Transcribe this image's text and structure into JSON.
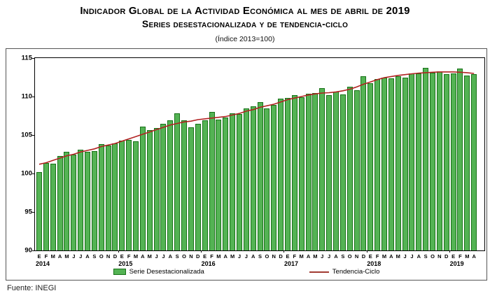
{
  "header": {
    "title_line1": "Indicador Global de la Actividad Económica al mes de abril de 2019",
    "title_line2": "Series desestacionalizada y de tendencia-ciclo",
    "index_note": "(Índice 2013=100)"
  },
  "legend": {
    "bars_label": "Serie Desestacionalizada",
    "line_label": "Tendencia-Ciclo"
  },
  "footer": {
    "source": "Fuente: INEGI"
  },
  "chart_data": {
    "type": "bar",
    "title": "Indicador Global de la Actividad Económica al mes de abril de 2019",
    "subtitle": "Series desestacionalizada y de tendencia-ciclo (Índice 2013=100)",
    "ylim": [
      90,
      115
    ],
    "yticks": [
      90,
      95,
      100,
      105,
      110,
      115
    ],
    "grid": false,
    "legend_position": "bottom",
    "month_letters": [
      "E",
      "F",
      "M",
      "A",
      "M",
      "J",
      "J",
      "A",
      "S",
      "O",
      "N",
      "D"
    ],
    "years": [
      {
        "label": "2014",
        "months": 12
      },
      {
        "label": "2015",
        "months": 12
      },
      {
        "label": "2016",
        "months": 12
      },
      {
        "label": "2017",
        "months": 12
      },
      {
        "label": "2018",
        "months": 12
      },
      {
        "label": "2019",
        "months": 4
      }
    ],
    "series": [
      {
        "name": "Serie Desestacionalizada",
        "render": "bar",
        "color_fill": "#54b354",
        "color_border": "#177117",
        "values": [
          100.2,
          101.4,
          101.3,
          102.3,
          102.8,
          102.5,
          103.1,
          102.8,
          102.9,
          103.8,
          103.6,
          103.9,
          104.3,
          104.4,
          104.2,
          106.1,
          105.6,
          105.9,
          106.5,
          106.9,
          107.8,
          106.9,
          106.0,
          106.5,
          106.9,
          108.0,
          107.0,
          107.3,
          107.8,
          107.7,
          108.5,
          108.7,
          109.3,
          108.5,
          108.9,
          109.7,
          109.8,
          110.2,
          109.9,
          110.4,
          110.5,
          111.1,
          110.2,
          110.6,
          110.3,
          111.3,
          110.8,
          112.6,
          111.7,
          112.3,
          112.5,
          112.4,
          112.6,
          112.5,
          113.0,
          113.0,
          113.7,
          113.1,
          113.3,
          112.9,
          113.0,
          113.6,
          112.7,
          112.9
        ]
      },
      {
        "name": "Tendencia-Ciclo",
        "render": "line",
        "color": "#b22222",
        "values": [
          101.2,
          101.4,
          101.7,
          102.0,
          102.3,
          102.5,
          102.8,
          103.0,
          103.2,
          103.5,
          103.7,
          103.9,
          104.2,
          104.5,
          104.8,
          105.1,
          105.4,
          105.7,
          106.0,
          106.3,
          106.5,
          106.7,
          106.8,
          107.0,
          107.1,
          107.2,
          107.3,
          107.4,
          107.6,
          107.8,
          108.1,
          108.3,
          108.6,
          108.8,
          109.0,
          109.3,
          109.6,
          109.8,
          110.0,
          110.2,
          110.35,
          110.45,
          110.5,
          110.6,
          110.75,
          110.95,
          111.25,
          111.6,
          111.9,
          112.2,
          112.45,
          112.6,
          112.75,
          112.85,
          112.95,
          113.05,
          113.1,
          113.15,
          113.2,
          113.2,
          113.2,
          113.15,
          113.1,
          113.0
        ]
      }
    ]
  }
}
